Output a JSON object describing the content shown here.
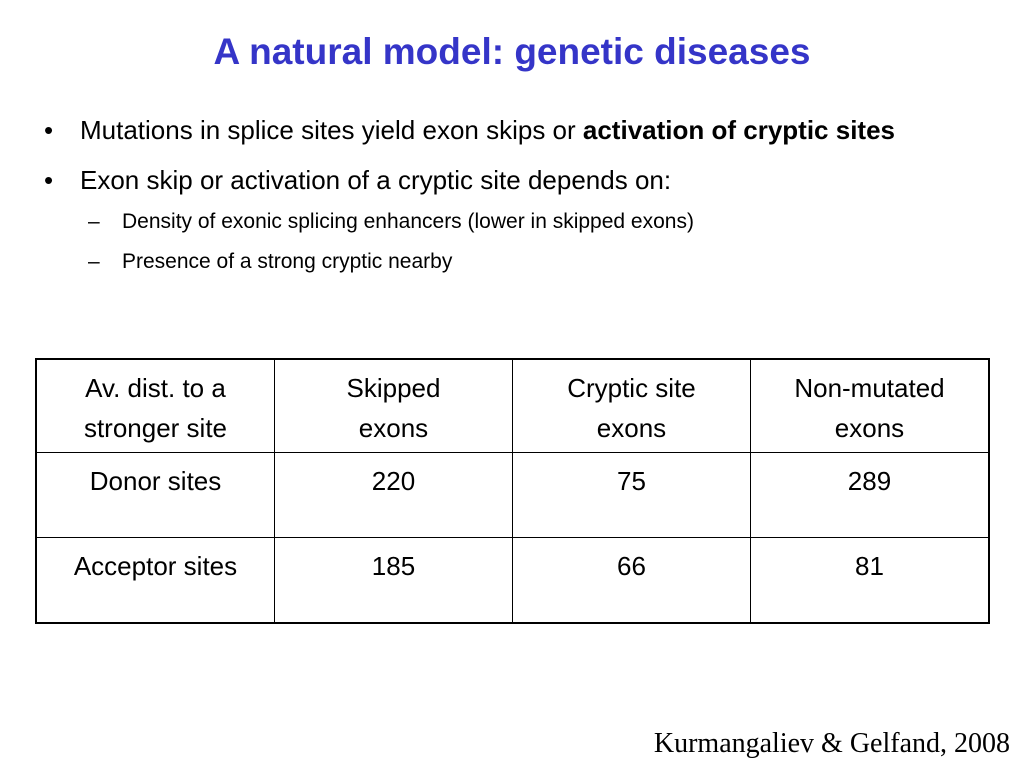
{
  "slide": {
    "title": "A natural model: genetic diseases",
    "title_color": "#3535c8"
  },
  "bullets": [
    {
      "marker": "•",
      "text_normal": "Mutations in splice sites yield exon skips or ",
      "text_bold": "activation of cryptic sites"
    },
    {
      "marker": "•",
      "text_normal": "Exon skip or activation of a cryptic site depends on:",
      "sub_items": [
        {
          "marker": "–",
          "text": "Density of exonic splicing enhancers (lower in skipped exons)"
        },
        {
          "marker": "–",
          "text": "Presence of a strong cryptic nearby"
        }
      ]
    }
  ],
  "table": {
    "headers": [
      [
        "Av. dist. to a",
        "stronger site"
      ],
      [
        "Skipped",
        "exons"
      ],
      [
        "Cryptic site",
        "exons"
      ],
      [
        "Non-mutated",
        "exons"
      ]
    ],
    "rows": [
      [
        "Donor sites",
        "220",
        "75",
        "289"
      ],
      [
        "Acceptor sites",
        "185",
        "66",
        "81"
      ]
    ]
  },
  "citation": "Kurmangaliev & Gelfand, 2008"
}
